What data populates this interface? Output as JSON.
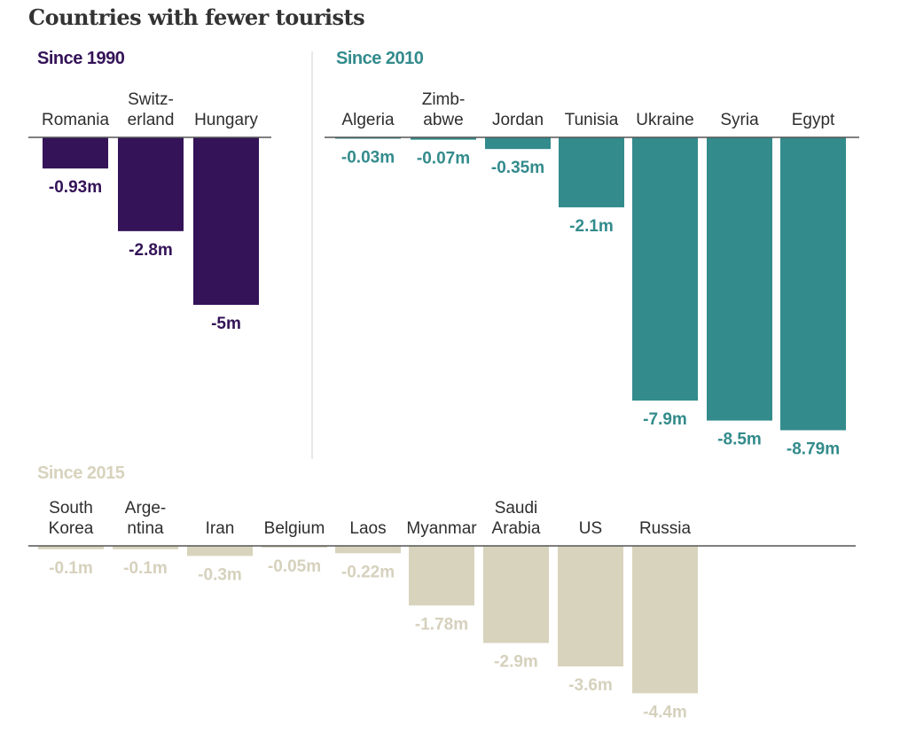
{
  "chart_data": [
    {
      "type": "bar",
      "title": "Countries with fewer tourists",
      "panel_title": "Since 1990",
      "color": "#341358",
      "label_color": "#341358",
      "categories": [
        [
          "Romania"
        ],
        [
          "Switz-",
          "erland"
        ],
        [
          "Hungary"
        ]
      ],
      "category_names": [
        "Romania",
        "Switzerland",
        "Hungary"
      ],
      "values": [
        -0.93,
        -2.8,
        -5
      ],
      "labels": [
        "-0.93m",
        "-2.8m",
        "-5m"
      ],
      "unit": "million tourists",
      "ylim": [
        -9,
        0
      ]
    },
    {
      "type": "bar",
      "panel_title": "Since 2010",
      "color": "#338b8c",
      "label_color": "#338b8c",
      "categories": [
        [
          "Algeria"
        ],
        [
          "Zimb-",
          "abwe"
        ],
        [
          "Jordan"
        ],
        [
          "Tunisia"
        ],
        [
          "Ukraine"
        ],
        [
          "Syria"
        ],
        [
          "Egypt"
        ]
      ],
      "category_names": [
        "Algeria",
        "Zimbabwe",
        "Jordan",
        "Tunisia",
        "Ukraine",
        "Syria",
        "Egypt"
      ],
      "values": [
        -0.03,
        -0.07,
        -0.35,
        -2.1,
        -7.9,
        -8.5,
        -8.79
      ],
      "labels": [
        "-0.03m",
        "-0.07m",
        "-0.35m",
        "-2.1m",
        "-7.9m",
        "-8.5m",
        "-8.79m"
      ],
      "unit": "million tourists",
      "ylim": [
        -9,
        0
      ]
    },
    {
      "type": "bar",
      "panel_title": "Since 2015",
      "color": "#d8d3bd",
      "label_color": "#d6d1bd",
      "categories": [
        [
          "South",
          "Korea"
        ],
        [
          "Arge-",
          "ntina"
        ],
        [
          "Iran"
        ],
        [
          "Belgium"
        ],
        [
          "Laos"
        ],
        [
          "Myanmar"
        ],
        [
          "Saudi",
          "Arabia"
        ],
        [
          "US"
        ],
        [
          "Russia"
        ]
      ],
      "category_names": [
        "South Korea",
        "Argentina",
        "Iran",
        "Belgium",
        "Laos",
        "Myanmar",
        "Saudi Arabia",
        "US",
        "Russia"
      ],
      "values": [
        -0.1,
        -0.1,
        -0.3,
        -0.05,
        -0.22,
        -1.78,
        -2.9,
        -3.6,
        -4.4
      ],
      "labels": [
        "-0.1m",
        "-0.1m",
        "-0.3m",
        "-0.05m",
        "-0.22m",
        "-1.78m",
        "-2.9m",
        "-3.6m",
        "-4.4m"
      ],
      "unit": "million tourists",
      "ylim": [
        -5,
        0
      ]
    }
  ],
  "colors": {
    "axis": "#555555",
    "divider": "#e6e6e6",
    "title": "#333333",
    "category_text": "#2e2e2e"
  }
}
